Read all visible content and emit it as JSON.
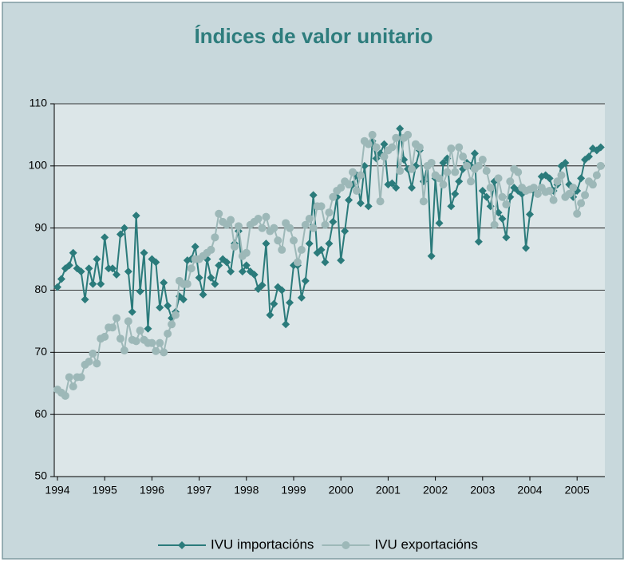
{
  "chart_data": {
    "type": "line",
    "title": "Índices de valor unitario",
    "categories": [
      "1994",
      null,
      null,
      null,
      null,
      null,
      null,
      null,
      null,
      null,
      null,
      null,
      "1995",
      null,
      null,
      null,
      null,
      null,
      null,
      null,
      null,
      null,
      null,
      null,
      "1996",
      null,
      null,
      null,
      null,
      null,
      null,
      null,
      null,
      null,
      null,
      null,
      "1997",
      null,
      null,
      null,
      null,
      null,
      null,
      null,
      null,
      null,
      null,
      null,
      "1998",
      null,
      null,
      null,
      null,
      null,
      null,
      null,
      null,
      null,
      null,
      null,
      "1999",
      null,
      null,
      null,
      null,
      null,
      null,
      null,
      null,
      null,
      null,
      null,
      "2000",
      null,
      null,
      null,
      null,
      null,
      null,
      null,
      null,
      null,
      null,
      null,
      "2001",
      null,
      null,
      null,
      null,
      null,
      null,
      null,
      null,
      null,
      null,
      null,
      "2002",
      null,
      null,
      null,
      null,
      null,
      null,
      null,
      null,
      null,
      null,
      null,
      "2003",
      null,
      null,
      null,
      null,
      null,
      null,
      null,
      null,
      null,
      null,
      null,
      "2004",
      null,
      null,
      null,
      null,
      null,
      null,
      null,
      null,
      null,
      null,
      null,
      "2005",
      null,
      null,
      null,
      null,
      null,
      null
    ],
    "series": [
      {
        "name": "IVU importacións",
        "color": "#2b7b7b",
        "marker": "diamond",
        "values": [
          80.5,
          81.8,
          83.5,
          84,
          86,
          83.5,
          83,
          78.5,
          83.5,
          81,
          85,
          81,
          88.5,
          83.5,
          83.5,
          82.5,
          89,
          90,
          83,
          76.5,
          92,
          79.8,
          86,
          73.8,
          85,
          84.5,
          77.2,
          81.2,
          77.5,
          75.5,
          76.5,
          79,
          78.5,
          84.8,
          85,
          87,
          82,
          79.3,
          85,
          82,
          81,
          84,
          85,
          84.5,
          83,
          87.5,
          89.5,
          83,
          84,
          83,
          82.5,
          80.2,
          80.8,
          87.5,
          76,
          77.8,
          80.5,
          80,
          74.5,
          78,
          84,
          84,
          78.8,
          81.5,
          87.5,
          95.3,
          86,
          86.5,
          84.5,
          87.5,
          91,
          95,
          84.8,
          89.5,
          94.5,
          97,
          98.5,
          94,
          100,
          93.5,
          104,
          101.2,
          102,
          103.5,
          97,
          97.2,
          96.5,
          106,
          101,
          99.5,
          96.5,
          100,
          102.5,
          97.5,
          100,
          85.5,
          98,
          90.8,
          100.5,
          101.2,
          93.5,
          95.5,
          97.5,
          99.5,
          100.5,
          100,
          102,
          87.8,
          96,
          95,
          93.5,
          97.5,
          92.5,
          91.5,
          88.5,
          95,
          96.5,
          96,
          95.5,
          86.8,
          92.2,
          96,
          95.5,
          98.3,
          98.5,
          98,
          96,
          97,
          100,
          100.5,
          97,
          95,
          96,
          98,
          101,
          101.5,
          102.8,
          102.5,
          103
        ]
      },
      {
        "name": "IVU exportacións",
        "color": "#9db8b8",
        "marker": "circle",
        "values": [
          64,
          63.5,
          63,
          66,
          64.5,
          66,
          66,
          68,
          68.5,
          69.8,
          68.2,
          72.2,
          72.5,
          74,
          74,
          75.5,
          72.2,
          70.3,
          75,
          72,
          71.8,
          73.5,
          72,
          71.5,
          71.5,
          70.2,
          71.5,
          70,
          73,
          74.5,
          76,
          81.5,
          81,
          81,
          83.5,
          85,
          85,
          85.5,
          86,
          86.5,
          88.5,
          92.3,
          91,
          90.5,
          91.3,
          87,
          90.3,
          85.5,
          86,
          90.5,
          91,
          91.5,
          90,
          91.8,
          89.5,
          90,
          88,
          86.5,
          90.8,
          90,
          88,
          84.5,
          86.5,
          90.5,
          91.5,
          90,
          93.5,
          93.5,
          90.5,
          92.5,
          95,
          96,
          96.5,
          97.5,
          97,
          99,
          96,
          98.5,
          104,
          103.5,
          105,
          103,
          94.3,
          101.5,
          102.5,
          103,
          104.5,
          99.2,
          104.5,
          105,
          99.5,
          103.5,
          103,
          94.3,
          100,
          100.5,
          98.5,
          98,
          97,
          99,
          102.8,
          99,
          103,
          101.5,
          100,
          97.5,
          99.5,
          100,
          101,
          99.2,
          96.5,
          90.5,
          98,
          95,
          93.8,
          97.5,
          99.5,
          99,
          96.5,
          96,
          96.2,
          96.5,
          95.5,
          96.5,
          95.8,
          96,
          94.5,
          97.5,
          98.5,
          95,
          95.5,
          96.5,
          92.3,
          94,
          95.3,
          97.5,
          97,
          98.5,
          100
        ]
      }
    ],
    "ylim": [
      50,
      110
    ],
    "yticks": [
      50,
      60,
      70,
      80,
      90,
      100,
      110
    ],
    "grid": true,
    "legend": "bottom"
  }
}
